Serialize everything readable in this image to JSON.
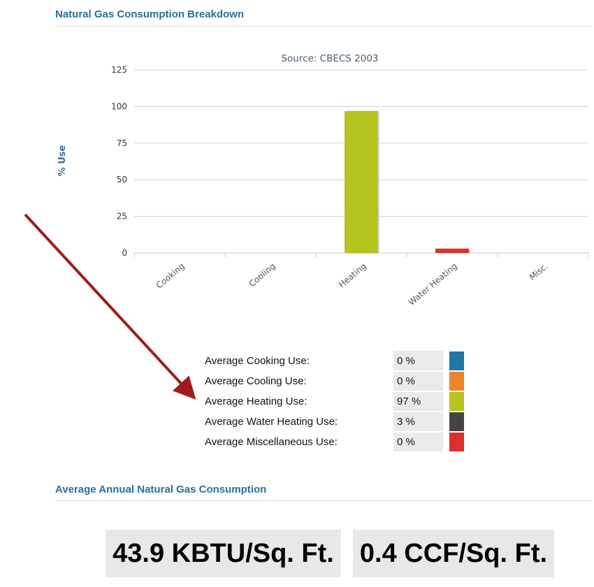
{
  "sections": {
    "breakdown_title": "Natural Gas Consumption Breakdown",
    "annual_title": "Average Annual Natural Gas Consumption"
  },
  "chart_data": {
    "type": "bar",
    "title": "Source: CBECS 2003",
    "xlabel": "",
    "ylabel": "% Use",
    "ylim": [
      0,
      125
    ],
    "yticks": [
      0,
      25,
      50,
      75,
      100,
      125
    ],
    "categories": [
      "Cooking",
      "Cooling",
      "Heating",
      "Water Heating",
      "Misc."
    ],
    "values": [
      0,
      0,
      97,
      3,
      0
    ],
    "bar_colors": [
      "#1f77a4",
      "#f0832a",
      "#b5c41f",
      "#d9312b",
      "#d9312b"
    ],
    "grid": true
  },
  "legend": [
    {
      "label": "Average Cooking Use:",
      "value": "0 %",
      "color": "#1f77a4"
    },
    {
      "label": "Average Cooling Use:",
      "value": "0 %",
      "color": "#f0832a"
    },
    {
      "label": "Average Heating Use:",
      "value": "97 %",
      "color": "#b5c41f"
    },
    {
      "label": "Average Water Heating Use:",
      "value": "3 %",
      "color": "#444444"
    },
    {
      "label": "Average Miscellaneous Use:",
      "value": "0 %",
      "color": "#d9312b"
    }
  ],
  "stats": {
    "kbtu": "43.9 KBTU/Sq. Ft.",
    "ccf": "0.4 CCF/Sq. Ft."
  },
  "colors": {
    "section_title": "#2a6f9a",
    "arrow": "#a01b1b"
  }
}
